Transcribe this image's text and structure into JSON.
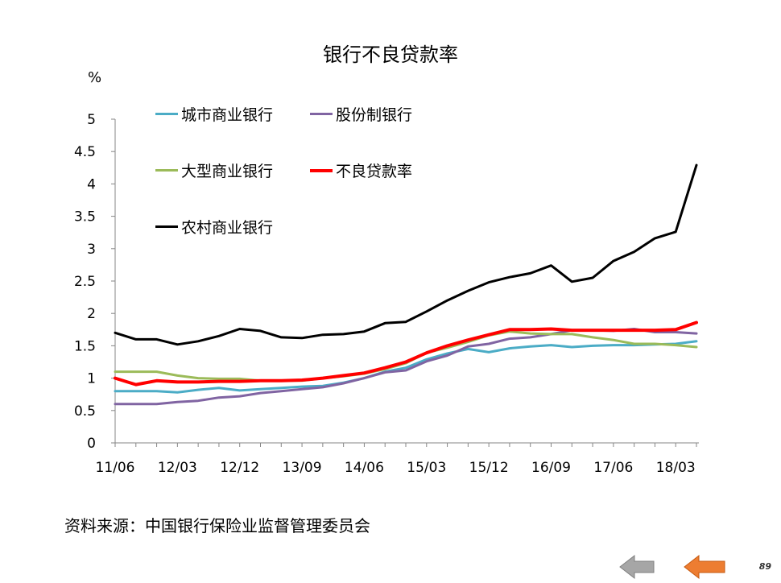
{
  "title": "银行不良贷款率",
  "unit": "%",
  "source": "资料来源：中国银行保险业监督管理委员会",
  "page_number": "89",
  "nav": {
    "prev_icon": "arrow-left-icon",
    "next_icon": "arrow-left-icon",
    "prev_color": "#a6a6a6",
    "next_color": "#ed7d31"
  },
  "chart_data": {
    "type": "line",
    "title": "银行不良贷款率",
    "ylabel": "%",
    "ylim": [
      0,
      5
    ],
    "yticks": [
      "0",
      "0.5",
      "1",
      "1.5",
      "2",
      "2.5",
      "3",
      "3.5",
      "4",
      "4.5",
      "5"
    ],
    "x": [
      "11/06",
      "11/09",
      "11/12",
      "12/03",
      "12/06",
      "12/09",
      "12/12",
      "13/03",
      "13/06",
      "13/09",
      "13/12",
      "14/03",
      "14/06",
      "14/09",
      "14/12",
      "15/03",
      "15/06",
      "15/09",
      "15/12",
      "16/03",
      "16/06",
      "16/09",
      "16/12",
      "17/03",
      "17/06",
      "17/09",
      "17/12",
      "18/03",
      "18/06"
    ],
    "xtick_labels": [
      "11/06",
      "12/03",
      "12/12",
      "13/09",
      "14/06",
      "15/03",
      "15/12",
      "16/09",
      "17/06",
      "18/03"
    ],
    "legend_position": "top-left",
    "series": [
      {
        "name": "城市商业银行",
        "color": "#4bacc6",
        "width": 3,
        "values": [
          0.8,
          0.8,
          0.8,
          0.78,
          0.82,
          0.85,
          0.81,
          0.83,
          0.85,
          0.87,
          0.88,
          0.93,
          1.0,
          1.1,
          1.16,
          1.29,
          1.38,
          1.45,
          1.4,
          1.46,
          1.49,
          1.51,
          1.48,
          1.5,
          1.51,
          1.51,
          1.52,
          1.53,
          1.57
        ]
      },
      {
        "name": "股份制银行",
        "color": "#8064a2",
        "width": 3,
        "values": [
          0.6,
          0.6,
          0.6,
          0.63,
          0.65,
          0.7,
          0.72,
          0.77,
          0.8,
          0.83,
          0.86,
          0.92,
          1.0,
          1.09,
          1.12,
          1.26,
          1.35,
          1.49,
          1.53,
          1.61,
          1.63,
          1.68,
          1.74,
          1.74,
          1.73,
          1.76,
          1.71,
          1.71,
          1.69
        ]
      },
      {
        "name": "大型商业银行",
        "color": "#9bbb59",
        "width": 3,
        "values": [
          1.1,
          1.1,
          1.1,
          1.04,
          1.0,
          0.99,
          0.99,
          0.96,
          0.96,
          0.96,
          1.0,
          1.03,
          1.07,
          1.14,
          1.23,
          1.39,
          1.47,
          1.56,
          1.66,
          1.72,
          1.69,
          1.68,
          1.68,
          1.63,
          1.59,
          1.53,
          1.53,
          1.51,
          1.48
        ]
      },
      {
        "name": "不良贷款率",
        "color": "#ff0000",
        "width": 4,
        "values": [
          1.0,
          0.9,
          0.96,
          0.94,
          0.94,
          0.95,
          0.95,
          0.96,
          0.96,
          0.97,
          1.0,
          1.04,
          1.08,
          1.16,
          1.25,
          1.39,
          1.5,
          1.59,
          1.67,
          1.75,
          1.75,
          1.76,
          1.74,
          1.74,
          1.74,
          1.74,
          1.74,
          1.75,
          1.86
        ]
      },
      {
        "name": "农村商业银行",
        "color": "#000000",
        "width": 3,
        "values": [
          1.7,
          1.6,
          1.6,
          1.52,
          1.57,
          1.65,
          1.76,
          1.73,
          1.63,
          1.62,
          1.67,
          1.68,
          1.72,
          1.85,
          1.87,
          2.03,
          2.2,
          2.35,
          2.48,
          2.56,
          2.62,
          2.74,
          2.49,
          2.55,
          2.81,
          2.95,
          3.16,
          3.26,
          4.29
        ]
      }
    ]
  }
}
